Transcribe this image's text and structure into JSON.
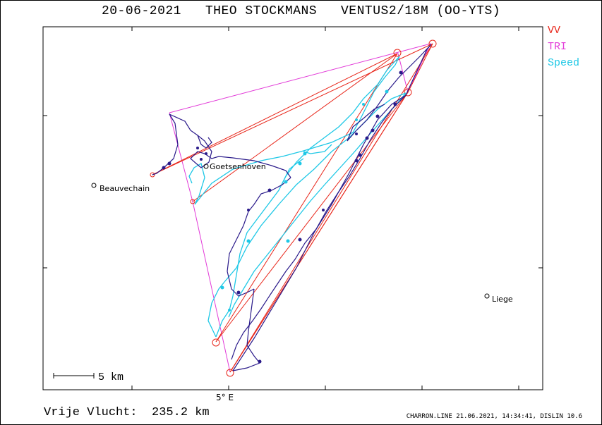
{
  "title": "20-06-2021   THEO STOCKMANS   VENTUS2/18M (OO-YTS)",
  "legend": [
    {
      "label": "VV",
      "color": "#e8261a"
    },
    {
      "label": "TRI",
      "color": "#e23ad8"
    },
    {
      "label": "Speed",
      "color": "#1ec8e6"
    }
  ],
  "places": [
    {
      "name": "Beauvechain"
    },
    {
      "name": "Goetsenhoven"
    },
    {
      "name": "Liege"
    }
  ],
  "scale_label": "5 km",
  "axis_label": "5° E",
  "footer_left": "Vrije Vlucht:  235.2 km",
  "footer_right": "CHARRON.LINE 21.06.2021, 14:34:41, DISLIN 10.6",
  "colors": {
    "track": "#2a1a8a",
    "speed": "#1ec8e6",
    "vv": "#e8261a",
    "tri": "#e23ad8",
    "frame": "#000000"
  }
}
